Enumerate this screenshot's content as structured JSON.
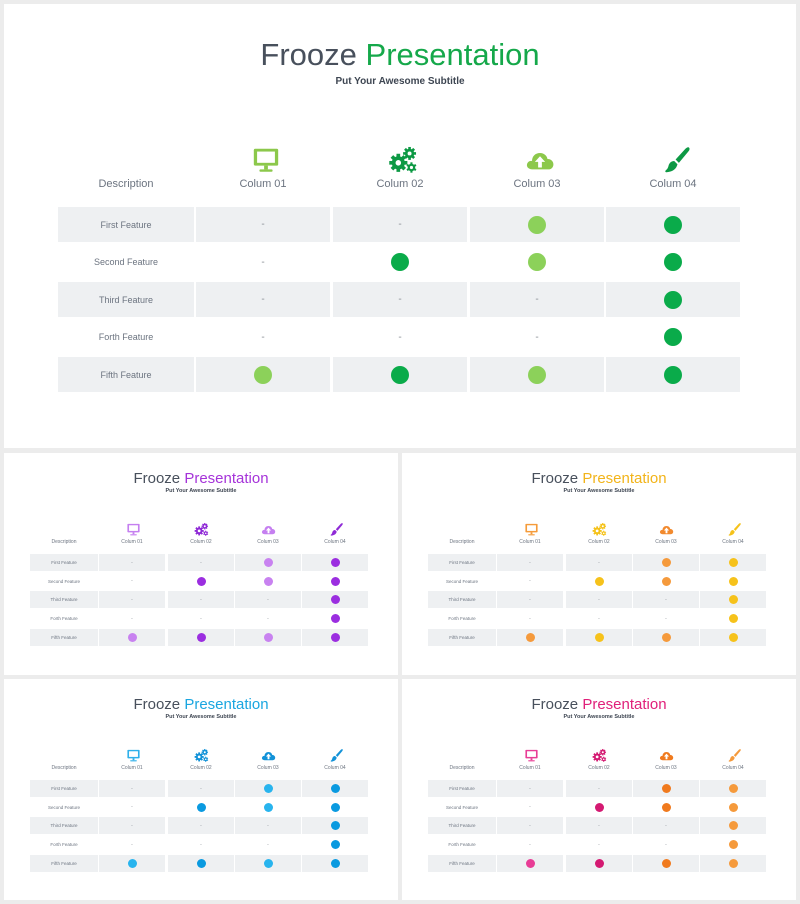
{
  "title_dark": "Frooze",
  "title_accent": "Presentation",
  "subtitle": "Put Your Awesome Subtitle",
  "description_header": "Description",
  "columns": [
    {
      "label": "Colum 01",
      "icon": "monitor-icon"
    },
    {
      "label": "Colum 02",
      "icon": "gears-icon"
    },
    {
      "label": "Colum 03",
      "icon": "cloud-upload-icon"
    },
    {
      "label": "Colum 04",
      "icon": "paintbrush-icon"
    }
  ],
  "rows": [
    {
      "label": "First Feature",
      "cells": [
        0,
        0,
        1,
        2
      ]
    },
    {
      "label": "Second Feature",
      "cells": [
        0,
        2,
        1,
        2
      ]
    },
    {
      "label": "Third Feature",
      "cells": [
        0,
        0,
        0,
        2
      ]
    },
    {
      "label": "Forth Feature",
      "cells": [
        0,
        0,
        0,
        2
      ]
    },
    {
      "label": "Fifth Feature",
      "cells": [
        1,
        2,
        1,
        2
      ]
    }
  ],
  "dash_text": "-",
  "variants": [
    {
      "name": "green",
      "accent": "#15a84a",
      "icon_colors": [
        "#8cc84b",
        "#0d9944",
        "#8cc84b",
        "#0d9944"
      ],
      "dot_colors": [
        "#8cd15a",
        "#0aab4a"
      ]
    },
    {
      "name": "purple",
      "accent": "#a533d9",
      "icon_colors": [
        "#c57ff0",
        "#8f2ad6",
        "#c57ff0",
        "#8f2ad6"
      ],
      "dot_colors": [
        "#c882f0",
        "#9b2ee0"
      ]
    },
    {
      "name": "orange-yellow",
      "accent": "#f2b41a",
      "icon_colors": [
        "#f59b3a",
        "#f5c21a",
        "#f28a2e",
        "#f5c21a"
      ],
      "dot_colors": [
        "#f59a3c",
        "#f6c21b"
      ]
    },
    {
      "name": "blue",
      "accent": "#1aa6e0",
      "icon_colors": [
        "#2fb0ea",
        "#1292d8",
        "#1292d8",
        "#1292d8"
      ],
      "dot_colors": [
        "#28b4ee",
        "#0a9ae0"
      ]
    },
    {
      "name": "pink",
      "accent": "#e0207a",
      "icon_colors": [
        "#e83d96",
        "#d41a72",
        "#f07a1e",
        "#f59a3c"
      ],
      "dot_colors": [
        "#e83d96",
        "#d41a72"
      ],
      "col_dot_colors": [
        [
          "#e83d96",
          "#d41a72"
        ],
        [
          "#e83d96",
          "#d41a72"
        ],
        [
          "#f07a1e",
          "#f07a1e"
        ],
        [
          "#f59a3c",
          "#f59a3c"
        ]
      ]
    }
  ]
}
